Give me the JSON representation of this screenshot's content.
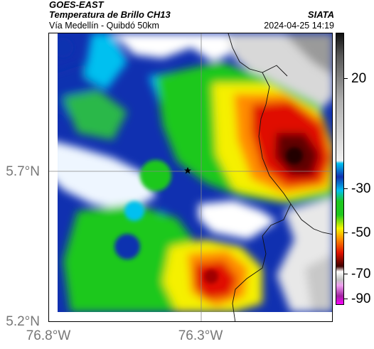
{
  "header": {
    "satellite": "GOES-EAST",
    "product": "Temperatura de Brillo CH13",
    "route": "Vía Medellín - Quibdó 50km",
    "org": "SIATA",
    "datetime": "2024-04-25 14:19"
  },
  "map": {
    "lat_labels": [
      {
        "value": 5.7,
        "label": "5.7°N"
      },
      {
        "value": 5.2,
        "label": "5.2°N"
      }
    ],
    "lon_labels": [
      {
        "value": -76.8,
        "label": "76.8°W"
      },
      {
        "value": -76.3,
        "label": "76.3°W"
      }
    ],
    "marker_icon": "star-icon"
  },
  "colorbar": {
    "ticks": [
      {
        "value": 20,
        "label": "20"
      },
      {
        "value": -30,
        "label": "-30"
      },
      {
        "value": -50,
        "label": "-50"
      },
      {
        "value": -70,
        "label": "-70"
      },
      {
        "value": -90,
        "label": "-90"
      }
    ],
    "colors": {
      "gray_dark": "#1a1a1a",
      "gray_light": "#f0f0f0",
      "cyan": "#00bfff",
      "blue": "#0a2aa0",
      "green": "#1ec81e",
      "yellow": "#f5f500",
      "orange": "#ff8c00",
      "red": "#e01000",
      "dark_red": "#300000",
      "magenta": "#c040c0"
    }
  }
}
